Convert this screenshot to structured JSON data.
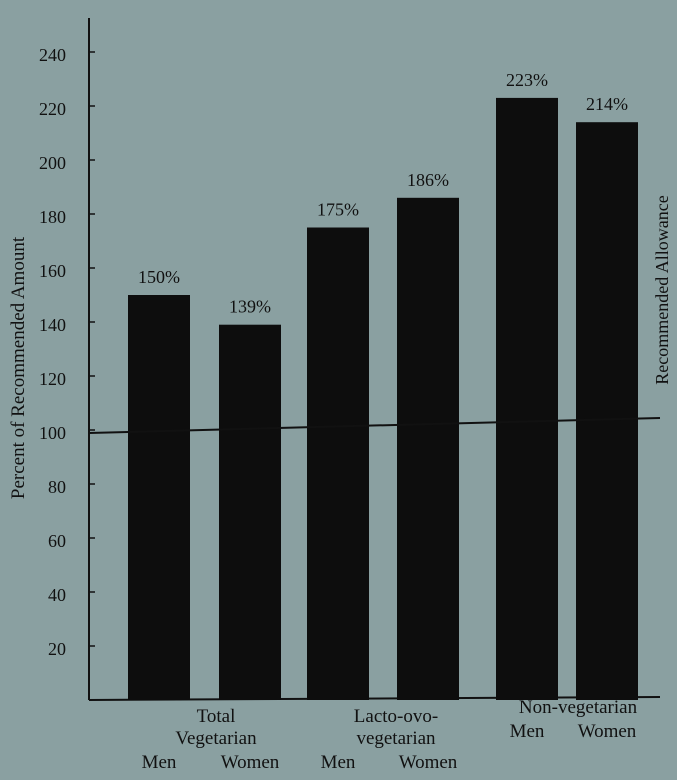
{
  "chart_data": {
    "type": "bar",
    "ylabel": "Percent of Recommended Amount",
    "reference_line": {
      "value": 100,
      "label": "Recommended Allowance"
    },
    "ylim": [
      0,
      240
    ],
    "yticks": [
      20,
      40,
      60,
      80,
      100,
      120,
      140,
      160,
      180,
      200,
      220,
      240
    ],
    "groups": [
      {
        "label": [
          "Total",
          "Vegetarian"
        ],
        "members": [
          "Men",
          "Women"
        ]
      },
      {
        "label": [
          "Lacto-ovo-",
          "vegetarian"
        ],
        "members": [
          "Men",
          "Women"
        ]
      },
      {
        "label": [
          "Non-vegetarian"
        ],
        "members": [
          "Men",
          "Women"
        ]
      }
    ],
    "bars": [
      {
        "group": 0,
        "member": "Men",
        "value": 150,
        "data_label": "150%"
      },
      {
        "group": 0,
        "member": "Women",
        "value": 139,
        "data_label": "139%"
      },
      {
        "group": 1,
        "member": "Men",
        "value": 175,
        "data_label": "175%"
      },
      {
        "group": 1,
        "member": "Women",
        "value": 186,
        "data_label": "186%"
      },
      {
        "group": 2,
        "member": "Men",
        "value": 223,
        "data_label": "223%"
      },
      {
        "group": 2,
        "member": "Women",
        "value": 214,
        "data_label": "214%"
      }
    ],
    "bar_color": "#0d0d0d",
    "background_color": "#8aa0a1",
    "grid": false,
    "legend": "none"
  }
}
